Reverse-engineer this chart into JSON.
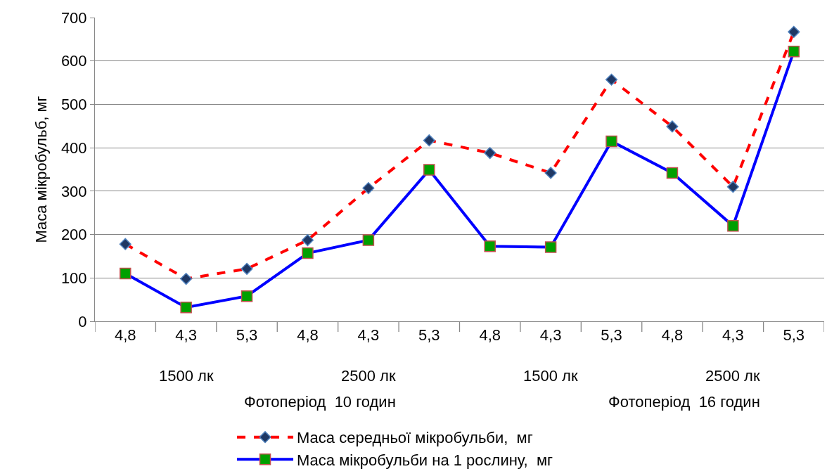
{
  "chart_data": {
    "type": "line",
    "ylabel": "Маса мікробульб, мг",
    "categories": [
      "4,8",
      "4,3",
      "5,3",
      "4,8",
      "4,3",
      "5,3",
      "4,8",
      "4,3",
      "5,3",
      "4,8",
      "4,3",
      "5,3"
    ],
    "series": [
      {
        "name": "Маса середньої мікробульби,  мг",
        "color": "#ff0000",
        "line_style": "dashed",
        "marker": "diamond",
        "values": [
          178,
          98,
          121,
          187,
          307,
          417,
          388,
          342,
          557,
          449,
          310,
          667
        ]
      },
      {
        "name": "Маса мікробульби на 1 рослину,  мг",
        "color": "#0000ff",
        "line_style": "solid",
        "marker": "square",
        "values": [
          110,
          32,
          58,
          157,
          187,
          349,
          173,
          171,
          415,
          342,
          220,
          622
        ]
      }
    ],
    "annotations": [
      "1500 лк",
      "2500 лк",
      "1500 лк",
      "2500 лк",
      "Фотоперіод  10 годин",
      "Фотоперіод  16 годин"
    ],
    "ylim": [
      0,
      700
    ],
    "yticks": [
      0,
      100,
      200,
      300,
      400,
      500,
      600,
      700
    ],
    "grid": "y",
    "legend": "bottom"
  }
}
